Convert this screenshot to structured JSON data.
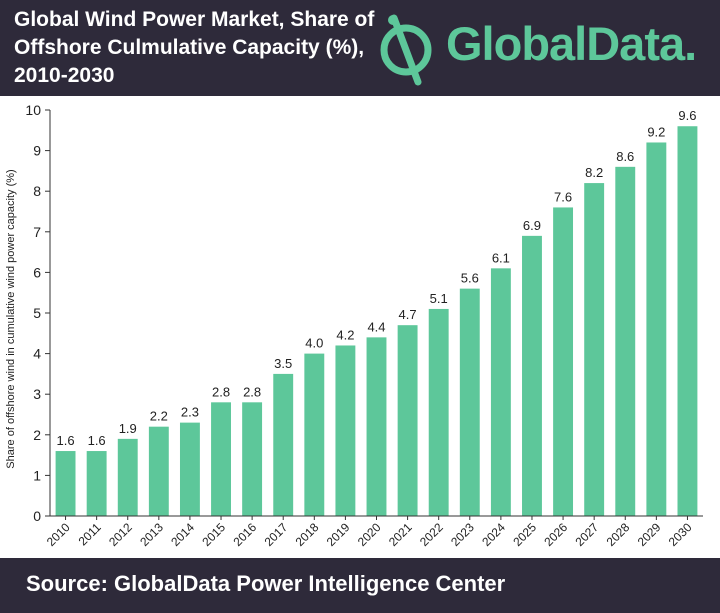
{
  "header": {
    "title_line1": "Global Wind Power Market, Share of",
    "title_line2": "Offshore Culmulative Capacity (%),",
    "title_line3": "2010-2030",
    "logo_text": "GlobalData."
  },
  "footer": {
    "source": "Source:  GlobalData Power Intelligence Center"
  },
  "colors": {
    "bar": "#5dc79a",
    "header_bg": "#2e2a3a",
    "logo": "#5dc79a"
  },
  "chart_data": {
    "type": "bar",
    "title": "Global Wind Power Market, Share of Offshore Culmulative Capacity (%), 2010-2030",
    "xlabel": "",
    "ylabel": "Share of offshore wind in cumulative wind power capacity (%)",
    "ylim": [
      0,
      10
    ],
    "yticks": [
      0,
      1,
      2,
      3,
      4,
      5,
      6,
      7,
      8,
      9,
      10
    ],
    "grid": false,
    "categories": [
      "2010",
      "2011",
      "2012",
      "2013",
      "2014",
      "2015",
      "2016",
      "2017",
      "2018",
      "2019",
      "2020",
      "2021",
      "2022",
      "2023",
      "2024",
      "2025",
      "2026",
      "2027",
      "2028",
      "2029",
      "2030"
    ],
    "values": [
      1.6,
      1.6,
      1.9,
      2.2,
      2.3,
      2.8,
      2.8,
      3.5,
      4.0,
      4.2,
      4.4,
      4.7,
      5.1,
      5.6,
      6.1,
      6.9,
      7.6,
      8.2,
      8.6,
      9.2,
      9.6
    ],
    "value_labels": [
      "1.6",
      "1.6",
      "1.9",
      "2.2",
      "2.3",
      "2.8",
      "2.8",
      "3.5",
      "4.0",
      "4.2",
      "4.4",
      "4.7",
      "5.1",
      "5.6",
      "6.1",
      "6.9",
      "7.6",
      "8.2",
      "8.6",
      "9.2",
      "9.6"
    ]
  }
}
